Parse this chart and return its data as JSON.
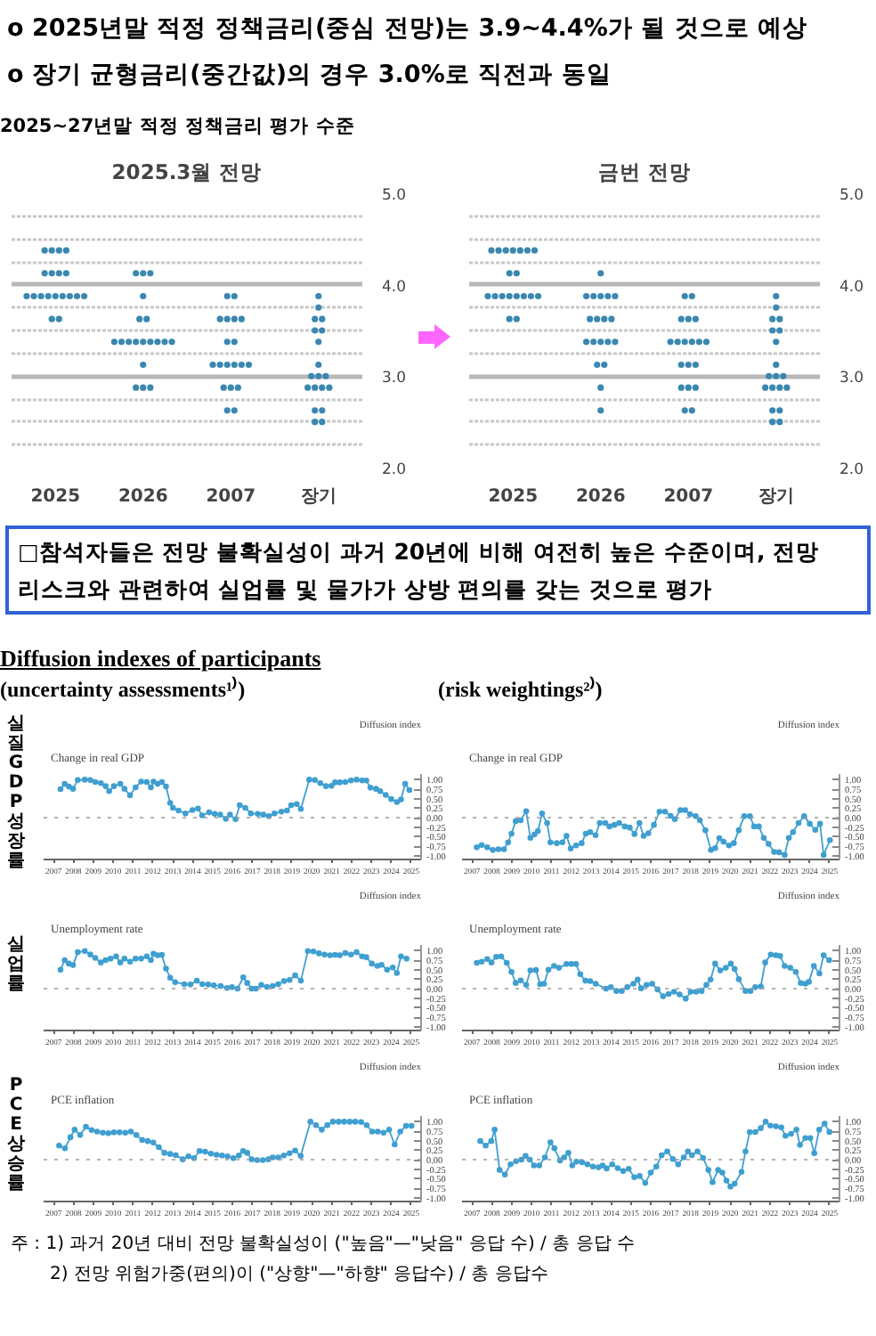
{
  "chart_data": [
    {
      "type": "other",
      "annotations": [
        "o 2025년말 적정 정책금리(중심 전망)는 3.9~4.4%가 될 것으로 예상",
        "o 장기 균형금리(중간값)의 경우 3.0%로 직전과 동일",
        "2025~27년말 적정 정책금리 평가 수준"
      ]
    },
    {
      "type": "scatter",
      "title": "2025.3월 전망",
      "categories": [
        "2025",
        "2026",
        "2007",
        "장기"
      ],
      "grid": "y",
      "marker": "circle",
      "ylim": [
        2,
        5
      ],
      "yticks": [
        {
          "value": 2,
          "label": "2.0"
        },
        {
          "value": 2.25,
          "label": null
        },
        {
          "value": 2.5,
          "label": null
        },
        {
          "value": 2.75,
          "label": null
        },
        {
          "value": 3,
          "label": "3.0"
        },
        {
          "value": 3.25,
          "label": null
        },
        {
          "value": 3.5,
          "label": null
        },
        {
          "value": 3.75,
          "label": null
        },
        {
          "value": 4,
          "label": "4.0"
        },
        {
          "value": 4.25,
          "label": null
        },
        {
          "value": 4.5,
          "label": null
        },
        {
          "value": 4.75,
          "label": null
        },
        {
          "value": 5,
          "label": "5.0"
        }
      ],
      "series": [
        {
          "color": "#3a87b0",
          "values": [
            4.375,
            4.125,
            3.875,
            3.875
          ]
        },
        {
          "color": "#3a87b0",
          "values": [
            4.375,
            4.125,
            3.875,
            3.75
          ]
        },
        {
          "color": "#3a87b0",
          "values": [
            4.375,
            4.125,
            3.625,
            3.625
          ]
        },
        {
          "color": "#3a87b0",
          "values": [
            4.375,
            3.875,
            3.625,
            3.625
          ]
        },
        {
          "color": "#3a87b0",
          "values": [
            4.125,
            3.625,
            3.625,
            3.5
          ]
        },
        {
          "color": "#3a87b0",
          "values": [
            4.125,
            3.625,
            3.625,
            3.5
          ]
        },
        {
          "color": "#3a87b0",
          "values": [
            4.125,
            3.375,
            3.375,
            3.375
          ]
        },
        {
          "color": "#3a87b0",
          "values": [
            4.125,
            3.375,
            3.375,
            3.125
          ]
        },
        {
          "color": "#3a87b0",
          "values": [
            3.875,
            3.375,
            3.125,
            3
          ]
        },
        {
          "color": "#3a87b0",
          "values": [
            3.875,
            3.375,
            3.125,
            3
          ]
        },
        {
          "color": "#3a87b0",
          "values": [
            3.875,
            3.375,
            3.125,
            3
          ]
        },
        {
          "color": "#3a87b0",
          "values": [
            3.875,
            3.375,
            3.125,
            2.875
          ]
        },
        {
          "color": "#3a87b0",
          "values": [
            3.875,
            3.375,
            3.125,
            2.875
          ]
        },
        {
          "color": "#3a87b0",
          "values": [
            3.875,
            3.375,
            3.125,
            2.875
          ]
        },
        {
          "color": "#3a87b0",
          "values": [
            3.875,
            3.375,
            2.875,
            2.875
          ]
        },
        {
          "color": "#3a87b0",
          "values": [
            3.875,
            3.125,
            2.875,
            2.625
          ]
        },
        {
          "color": "#3a87b0",
          "values": [
            3.875,
            2.875,
            2.875,
            2.625
          ]
        },
        {
          "color": "#3a87b0",
          "values": [
            3.625,
            2.875,
            2.625,
            2.5
          ]
        },
        {
          "color": "#3a87b0",
          "values": [
            3.625,
            2.875,
            2.625,
            2.5
          ]
        }
      ]
    },
    {
      "type": "scatter",
      "title": "금번 전망",
      "categories": [
        "2025",
        "2026",
        "2007",
        "장기"
      ],
      "grid": "y",
      "marker": "circle",
      "ylim": [
        2,
        5
      ],
      "yticks": [
        {
          "value": 2,
          "label": "2.0"
        },
        {
          "value": 2.25,
          "label": null
        },
        {
          "value": 2.5,
          "label": null
        },
        {
          "value": 2.75,
          "label": null
        },
        {
          "value": 3,
          "label": "3.0"
        },
        {
          "value": 3.25,
          "label": null
        },
        {
          "value": 3.5,
          "label": null
        },
        {
          "value": 3.75,
          "label": null
        },
        {
          "value": 4,
          "label": "4.0"
        },
        {
          "value": 4.25,
          "label": null
        },
        {
          "value": 4.5,
          "label": null
        },
        {
          "value": 4.75,
          "label": null
        },
        {
          "value": 5,
          "label": "5.0"
        }
      ],
      "series": [
        {
          "color": "#3a87b0",
          "values": [
            4.375,
            4.125,
            3.875,
            3.875
          ]
        },
        {
          "color": "#3a87b0",
          "values": [
            4.375,
            3.875,
            3.875,
            3.75
          ]
        },
        {
          "color": "#3a87b0",
          "values": [
            4.375,
            3.875,
            3.625,
            3.625
          ]
        },
        {
          "color": "#3a87b0",
          "values": [
            4.375,
            3.875,
            3.625,
            3.625
          ]
        },
        {
          "color": "#3a87b0",
          "values": [
            4.375,
            3.875,
            3.625,
            3.5
          ]
        },
        {
          "color": "#3a87b0",
          "values": [
            4.375,
            3.875,
            3.375,
            3.5
          ]
        },
        {
          "color": "#3a87b0",
          "values": [
            4.375,
            3.625,
            3.375,
            3.375
          ]
        },
        {
          "color": "#3a87b0",
          "values": [
            4.125,
            3.625,
            3.375,
            3.125
          ]
        },
        {
          "color": "#3a87b0",
          "values": [
            4.125,
            3.625,
            3.375,
            3
          ]
        },
        {
          "color": "#3a87b0",
          "values": [
            3.875,
            3.625,
            3.375,
            3
          ]
        },
        {
          "color": "#3a87b0",
          "values": [
            3.875,
            3.375,
            3.375,
            3
          ]
        },
        {
          "color": "#3a87b0",
          "values": [
            3.875,
            3.375,
            3.125,
            2.875
          ]
        },
        {
          "color": "#3a87b0",
          "values": [
            3.875,
            3.375,
            3.125,
            2.875
          ]
        },
        {
          "color": "#3a87b0",
          "values": [
            3.875,
            3.375,
            3.125,
            2.875
          ]
        },
        {
          "color": "#3a87b0",
          "values": [
            3.875,
            3.375,
            2.875,
            2.875
          ]
        },
        {
          "color": "#3a87b0",
          "values": [
            3.875,
            3.125,
            2.875,
            2.625
          ]
        },
        {
          "color": "#3a87b0",
          "values": [
            3.875,
            3.125,
            2.875,
            2.625
          ]
        },
        {
          "color": "#3a87b0",
          "values": [
            3.625,
            2.875,
            2.625,
            2.5
          ]
        },
        {
          "color": "#3a87b0",
          "values": [
            3.625,
            2.625,
            2.625,
            2.5
          ]
        }
      ]
    },
    {
      "type": "other",
      "annotations": [
        "□참석자들은 전망 불확실성이 과거 20년에 비해 여전히 높은 수준이며, 전망 리스크와 관련하여 실업률 및 물가가 상방 편의를 갖는 것으로 평가",
        "Diffusion indexes of participants",
        "(uncertainty assessments¹⁾)",
        "(risk weightings²⁾)"
      ]
    },
    {
      "type": "line",
      "title": "Change in real GDP",
      "ylabel": "Diffusion index",
      "annotations": [
        "실질GDP 성장률"
      ],
      "marker": "circle",
      "line_style": "solid",
      "xlim": [
        2007,
        2026
      ],
      "ylim": [
        -1.1,
        1.15
      ],
      "xticks": [
        {
          "value": 2007.5,
          "label": "2007"
        },
        {
          "value": 2008.5,
          "label": "2008"
        },
        {
          "value": 2009.5,
          "label": "2009"
        },
        {
          "value": 2010.5,
          "label": "2010"
        },
        {
          "value": 2011.5,
          "label": "2011"
        },
        {
          "value": 2012.5,
          "label": "2012"
        },
        {
          "value": 2013.5,
          "label": "2013"
        },
        {
          "value": 2014.5,
          "label": "2014"
        },
        {
          "value": 2015.5,
          "label": "2015"
        },
        {
          "value": 2016.5,
          "label": "2016"
        },
        {
          "value": 2017.5,
          "label": "2017"
        },
        {
          "value": 2018.5,
          "label": "2018"
        },
        {
          "value": 2019.5,
          "label": "2019"
        },
        {
          "value": 2020.5,
          "label": "2020"
        },
        {
          "value": 2021.5,
          "label": "2021"
        },
        {
          "value": 2022.5,
          "label": "2022"
        },
        {
          "value": 2023.5,
          "label": "2023"
        },
        {
          "value": 2024.5,
          "label": "2024"
        },
        {
          "value": 2025.5,
          "label": "2025"
        }
      ],
      "yticks": [
        {
          "value": 1,
          "label": "1.00"
        },
        {
          "value": 0.75,
          "label": "0.75"
        },
        {
          "value": 0.5,
          "label": "0.50"
        },
        {
          "value": 0.25,
          "label": "0.25"
        },
        {
          "value": 0,
          "label": "0.00"
        },
        {
          "value": -0.25,
          "label": "-0.25"
        },
        {
          "value": -0.5,
          "label": "-0.50"
        },
        {
          "value": -0.75,
          "label": "-0.75"
        },
        {
          "value": -1,
          "label": "-1.00"
        }
      ],
      "ref_lines": [
        {
          "axis": "y",
          "value": 0,
          "color": "#9a9a9a",
          "line_style": "dotted"
        }
      ],
      "x": [
        2007.85,
        2008.06,
        2008.27,
        2008.48,
        2008.72,
        2009.07,
        2009.35,
        2009.6,
        2009.88,
        2010.12,
        2010.3,
        2010.54,
        2010.86,
        2011.07,
        2011.35,
        2011.63,
        2011.91,
        2012.19,
        2012.4,
        2012.53,
        2012.74,
        2012.95,
        2013.16,
        2013.37,
        2013.51,
        2013.79,
        2014.14,
        2014.49,
        2014.77,
        2014.98,
        2015.33,
        2015.61,
        2015.89,
        2016.17,
        2016.38,
        2016.66,
        2016.87,
        2017.15,
        2017.43,
        2017.78,
        2018.06,
        2018.34,
        2018.62,
        2018.97,
        2019.25,
        2019.46,
        2019.74,
        2019.95,
        2020.37,
        2020.65,
        2020.93,
        2021.21,
        2021.49,
        2021.67,
        2021.91,
        2022.19,
        2022.47,
        2022.75,
        2023.03,
        2023.24,
        2023.45,
        2023.73,
        2023.94,
        2024.22,
        2024.5,
        2024.78,
        2024.99,
        2025.2,
        2025.41
      ],
      "series": [
        {
          "color": "#3f9fd0",
          "values": [
            0.75,
            0.89,
            0.82,
            0.76,
            0.99,
            1.0,
            0.99,
            0.94,
            0.91,
            0.83,
            0.7,
            0.83,
            0.89,
            0.76,
            0.59,
            0.8,
            0.95,
            0.94,
            0.8,
            0.95,
            0.89,
            0.94,
            0.82,
            0.39,
            0.26,
            0.19,
            0.11,
            0.2,
            0.24,
            0.06,
            0.14,
            0.1,
            0.08,
            -0.03,
            0.08,
            -0.04,
            0.33,
            0.26,
            0.11,
            0.1,
            0.08,
            0.04,
            0.11,
            0.16,
            0.19,
            0.33,
            0.36,
            0.23,
            1.0,
            0.99,
            0.91,
            0.83,
            0.84,
            0.93,
            0.93,
            0.94,
            0.98,
            1.0,
            0.98,
            0.98,
            0.79,
            0.76,
            0.7,
            0.6,
            0.49,
            0.41,
            0.48,
            0.89,
            0.73
          ]
        }
      ]
    },
    {
      "type": "line",
      "title": "Change in real GDP",
      "ylabel": "Diffusion index",
      "marker": "circle",
      "line_style": "solid",
      "xlim": [
        2007,
        2026
      ],
      "ylim": [
        -1.1,
        1.15
      ],
      "xticks": [
        {
          "value": 2007.5,
          "label": "2007"
        },
        {
          "value": 2008.5,
          "label": "2008"
        },
        {
          "value": 2009.5,
          "label": "2009"
        },
        {
          "value": 2010.5,
          "label": "2010"
        },
        {
          "value": 2011.5,
          "label": "2011"
        },
        {
          "value": 2012.5,
          "label": "2012"
        },
        {
          "value": 2013.5,
          "label": "2013"
        },
        {
          "value": 2014.5,
          "label": "2014"
        },
        {
          "value": 2015.5,
          "label": "2015"
        },
        {
          "value": 2016.5,
          "label": "2016"
        },
        {
          "value": 2017.5,
          "label": "2017"
        },
        {
          "value": 2018.5,
          "label": "2018"
        },
        {
          "value": 2019.5,
          "label": "2019"
        },
        {
          "value": 2020.5,
          "label": "2020"
        },
        {
          "value": 2021.5,
          "label": "2021"
        },
        {
          "value": 2022.5,
          "label": "2022"
        },
        {
          "value": 2023.5,
          "label": "2023"
        },
        {
          "value": 2024.5,
          "label": "2024"
        },
        {
          "value": 2025.5,
          "label": "2025"
        }
      ],
      "yticks": [
        {
          "value": 1,
          "label": "1.00"
        },
        {
          "value": 0.75,
          "label": "0.75"
        },
        {
          "value": 0.5,
          "label": "0.50"
        },
        {
          "value": 0.25,
          "label": "0.25"
        },
        {
          "value": 0,
          "label": "0.00"
        },
        {
          "value": -0.25,
          "label": "-0.25"
        },
        {
          "value": -0.5,
          "label": "-0.50"
        },
        {
          "value": -0.75,
          "label": "-0.75"
        },
        {
          "value": -1,
          "label": "-1.00"
        }
      ],
      "ref_lines": [
        {
          "axis": "y",
          "value": 0,
          "color": "#9a9a9a",
          "line_style": "dotted"
        }
      ],
      "x": [
        2007.74,
        2007.99,
        2008.27,
        2008.55,
        2008.83,
        2009.11,
        2009.32,
        2009.49,
        2009.7,
        2009.95,
        2010.23,
        2010.44,
        2010.65,
        2010.82,
        2011.03,
        2011.28,
        2011.45,
        2011.77,
        2012.05,
        2012.26,
        2012.47,
        2012.74,
        2013.02,
        2013.23,
        2013.45,
        2013.72,
        2013.93,
        2014.21,
        2014.42,
        2014.67,
        2014.91,
        2015.19,
        2015.44,
        2015.68,
        2015.93,
        2016.14,
        2016.38,
        2016.66,
        2016.94,
        2017.22,
        2017.5,
        2017.71,
        2017.99,
        2018.23,
        2018.48,
        2018.76,
        2018.97,
        2019.25,
        2019.53,
        2019.74,
        2019.95,
        2020.16,
        2020.44,
        2020.68,
        2020.93,
        2021.21,
        2021.49,
        2021.7,
        2021.94,
        2022.19,
        2022.43,
        2022.71,
        2022.96,
        2023.24,
        2023.45,
        2023.66,
        2023.94,
        2024.22,
        2024.5,
        2024.78,
        2025.02,
        2025.2,
        2025.52
      ],
      "series": [
        {
          "color": "#3f9fd0",
          "values": [
            -0.78,
            -0.72,
            -0.78,
            -0.85,
            -0.83,
            -0.83,
            -0.65,
            -0.42,
            -0.09,
            -0.07,
            0.17,
            -0.53,
            -0.44,
            -0.35,
            0.11,
            -0.14,
            -0.65,
            -0.67,
            -0.65,
            -0.48,
            -0.81,
            -0.73,
            -0.67,
            -0.42,
            -0.38,
            -0.46,
            -0.14,
            -0.14,
            -0.23,
            -0.19,
            -0.14,
            -0.23,
            -0.26,
            -0.43,
            -0.14,
            -0.48,
            -0.41,
            -0.19,
            0.16,
            0.16,
            0.05,
            -0.04,
            0.2,
            0.2,
            0.09,
            0.04,
            -0.07,
            -0.33,
            -0.85,
            -0.8,
            -0.54,
            -0.63,
            -0.73,
            -0.67,
            -0.33,
            0.04,
            0.04,
            -0.23,
            -0.23,
            -0.53,
            -0.69,
            -0.9,
            -0.91,
            -0.98,
            -0.53,
            -0.38,
            -0.14,
            0.04,
            -0.16,
            -0.32,
            -0.16,
            -0.98,
            -0.59
          ]
        }
      ]
    },
    {
      "type": "line",
      "title": "Unemployment rate",
      "ylabel": "Diffusion index",
      "annotations": [
        "실업률"
      ],
      "marker": "circle",
      "line_style": "solid",
      "xlim": [
        2007,
        2026
      ],
      "ylim": [
        -1.1,
        1.15
      ],
      "xticks": [
        {
          "value": 2007.5,
          "label": "2007"
        },
        {
          "value": 2008.5,
          "label": "2008"
        },
        {
          "value": 2009.5,
          "label": "2009"
        },
        {
          "value": 2010.5,
          "label": "2010"
        },
        {
          "value": 2011.5,
          "label": "2011"
        },
        {
          "value": 2012.5,
          "label": "2012"
        },
        {
          "value": 2013.5,
          "label": "2013"
        },
        {
          "value": 2014.5,
          "label": "2014"
        },
        {
          "value": 2015.5,
          "label": "2015"
        },
        {
          "value": 2016.5,
          "label": "2016"
        },
        {
          "value": 2017.5,
          "label": "2017"
        },
        {
          "value": 2018.5,
          "label": "2018"
        },
        {
          "value": 2019.5,
          "label": "2019"
        },
        {
          "value": 2020.5,
          "label": "2020"
        },
        {
          "value": 2021.5,
          "label": "2021"
        },
        {
          "value": 2022.5,
          "label": "2022"
        },
        {
          "value": 2023.5,
          "label": "2023"
        },
        {
          "value": 2024.5,
          "label": "2024"
        },
        {
          "value": 2025.5,
          "label": "2025"
        }
      ],
      "yticks": [
        {
          "value": 1,
          "label": "1.00"
        },
        {
          "value": 0.75,
          "label": "0.75"
        },
        {
          "value": 0.5,
          "label": "0.50"
        },
        {
          "value": 0.25,
          "label": "0.25"
        },
        {
          "value": 0,
          "label": "0.00"
        },
        {
          "value": -0.25,
          "label": "-0.25"
        },
        {
          "value": -0.5,
          "label": "-0.50"
        },
        {
          "value": -0.75,
          "label": "-0.75"
        },
        {
          "value": -1,
          "label": "-1.00"
        }
      ],
      "ref_lines": [
        {
          "axis": "y",
          "value": 0,
          "color": "#9a9a9a",
          "line_style": "dotted"
        }
      ],
      "x": [
        2007.85,
        2008.06,
        2008.27,
        2008.48,
        2008.72,
        2009.07,
        2009.35,
        2009.6,
        2009.88,
        2010.12,
        2010.37,
        2010.65,
        2010.86,
        2011.07,
        2011.35,
        2011.63,
        2011.91,
        2012.19,
        2012.4,
        2012.53,
        2012.74,
        2012.95,
        2013.16,
        2013.37,
        2013.62,
        2014.08,
        2014.39,
        2014.71,
        2014.99,
        2015.28,
        2015.56,
        2015.91,
        2016.23,
        2016.48,
        2016.76,
        2017.05,
        2017.25,
        2017.47,
        2017.68,
        2017.96,
        2018.24,
        2018.53,
        2018.81,
        2019.1,
        2019.38,
        2019.66,
        2019.95,
        2020.3,
        2020.58,
        2020.86,
        2021.14,
        2021.42,
        2021.67,
        2021.91,
        2022.19,
        2022.47,
        2022.75,
        2023.03,
        2023.24,
        2023.52,
        2023.8,
        2024.01,
        2024.29,
        2024.57,
        2024.78,
        2024.99,
        2025.27
      ],
      "series": [
        {
          "color": "#3f9fd0",
          "values": [
            0.5,
            0.75,
            0.66,
            0.62,
            0.96,
            0.99,
            0.9,
            0.81,
            0.69,
            0.75,
            0.79,
            0.85,
            0.69,
            0.79,
            0.71,
            0.79,
            0.79,
            0.85,
            0.75,
            0.92,
            0.88,
            0.89,
            0.53,
            0.29,
            0.17,
            0.12,
            0.11,
            0.21,
            0.12,
            0.11,
            0.09,
            0.07,
            0.02,
            0.04,
            0.0,
            0.3,
            0.15,
            0.0,
            0.0,
            0.1,
            0.05,
            0.07,
            0.12,
            0.2,
            0.23,
            0.35,
            0.21,
            0.99,
            0.98,
            0.93,
            0.9,
            0.88,
            0.89,
            0.88,
            0.94,
            0.9,
            0.96,
            0.85,
            0.83,
            0.66,
            0.6,
            0.63,
            0.5,
            0.56,
            0.41,
            0.85,
            0.79
          ]
        }
      ]
    },
    {
      "type": "line",
      "title": "Unemployment rate",
      "ylabel": "Diffusion index",
      "marker": "circle",
      "line_style": "solid",
      "xlim": [
        2007,
        2026
      ],
      "ylim": [
        -1.1,
        1.15
      ],
      "xticks": [
        {
          "value": 2007.5,
          "label": "2007"
        },
        {
          "value": 2008.5,
          "label": "2008"
        },
        {
          "value": 2009.5,
          "label": "2009"
        },
        {
          "value": 2010.5,
          "label": "2010"
        },
        {
          "value": 2011.5,
          "label": "2011"
        },
        {
          "value": 2012.5,
          "label": "2012"
        },
        {
          "value": 2013.5,
          "label": "2013"
        },
        {
          "value": 2014.5,
          "label": "2014"
        },
        {
          "value": 2015.5,
          "label": "2015"
        },
        {
          "value": 2016.5,
          "label": "2016"
        },
        {
          "value": 2017.5,
          "label": "2017"
        },
        {
          "value": 2018.5,
          "label": "2018"
        },
        {
          "value": 2019.5,
          "label": "2019"
        },
        {
          "value": 2020.5,
          "label": "2020"
        },
        {
          "value": 2021.5,
          "label": "2021"
        },
        {
          "value": 2022.5,
          "label": "2022"
        },
        {
          "value": 2023.5,
          "label": "2023"
        },
        {
          "value": 2024.5,
          "label": "2024"
        },
        {
          "value": 2025.5,
          "label": "2025"
        }
      ],
      "yticks": [
        {
          "value": 1,
          "label": "1.00"
        },
        {
          "value": 0.75,
          "label": "0.75"
        },
        {
          "value": 0.5,
          "label": "0.50"
        },
        {
          "value": 0.25,
          "label": "0.25"
        },
        {
          "value": 0,
          "label": "0.00"
        },
        {
          "value": -0.25,
          "label": "-0.25"
        },
        {
          "value": -0.5,
          "label": "-0.50"
        },
        {
          "value": -0.75,
          "label": "-0.75"
        },
        {
          "value": -1,
          "label": "-1.00"
        }
      ],
      "ref_lines": [
        {
          "axis": "y",
          "value": 0,
          "color": "#9a9a9a",
          "line_style": "dotted"
        }
      ],
      "x": [
        2007.74,
        2007.99,
        2008.27,
        2008.48,
        2008.72,
        2008.97,
        2009.25,
        2009.49,
        2009.7,
        2009.95,
        2010.23,
        2010.44,
        2010.72,
        2010.93,
        2011.13,
        2011.35,
        2011.63,
        2011.88,
        2012.26,
        2012.51,
        2012.74,
        2012.95,
        2013.21,
        2013.45,
        2013.73,
        2014.25,
        2014.49,
        2014.77,
        2015.04,
        2015.32,
        2015.63,
        2015.84,
        2016.01,
        2016.29,
        2016.57,
        2016.84,
        2017.12,
        2017.4,
        2017.67,
        2017.95,
        2018.26,
        2018.51,
        2018.78,
        2019.06,
        2019.3,
        2019.51,
        2019.74,
        2020.0,
        2020.28,
        2020.53,
        2020.72,
        2020.93,
        2021.27,
        2021.52,
        2021.76,
        2022.04,
        2022.26,
        2022.54,
        2022.8,
        2023.01,
        2023.24,
        2023.52,
        2023.8,
        2024.05,
        2024.28,
        2024.46,
        2024.71,
        2024.99,
        2025.2,
        2025.48
      ],
      "series": [
        {
          "color": "#3f9fd0",
          "values": [
            0.68,
            0.71,
            0.78,
            0.69,
            0.84,
            0.85,
            0.68,
            0.44,
            0.15,
            0.22,
            0.1,
            0.48,
            0.49,
            0.12,
            0.13,
            0.5,
            0.6,
            0.55,
            0.65,
            0.65,
            0.65,
            0.38,
            0.21,
            0.2,
            0.13,
            0.0,
            0.04,
            -0.06,
            -0.06,
            0.04,
            0.13,
            0.24,
            0.01,
            0.1,
            0.13,
            -0.02,
            -0.2,
            -0.14,
            -0.08,
            -0.15,
            -0.26,
            -0.08,
            -0.08,
            -0.06,
            0.1,
            0.24,
            0.66,
            0.48,
            0.55,
            0.66,
            0.52,
            0.25,
            -0.06,
            -0.06,
            0.04,
            0.06,
            0.69,
            0.9,
            0.88,
            0.86,
            0.6,
            0.55,
            0.44,
            0.15,
            0.13,
            0.18,
            0.6,
            0.4,
            0.88,
            0.75
          ]
        }
      ]
    },
    {
      "type": "line",
      "title": "PCE inflation",
      "ylabel": "Diffusion index",
      "annotations": [
        "PCE 상승률"
      ],
      "marker": "circle",
      "line_style": "solid",
      "xlim": [
        2007,
        2026
      ],
      "ylim": [
        -1.1,
        1.15
      ],
      "xticks": [
        {
          "value": 2007.5,
          "label": "2007"
        },
        {
          "value": 2008.5,
          "label": "2008"
        },
        {
          "value": 2009.5,
          "label": "2009"
        },
        {
          "value": 2010.5,
          "label": "2010"
        },
        {
          "value": 2011.5,
          "label": "2011"
        },
        {
          "value": 2012.5,
          "label": "2012"
        },
        {
          "value": 2013.5,
          "label": "2013"
        },
        {
          "value": 2014.5,
          "label": "2014"
        },
        {
          "value": 2015.5,
          "label": "2015"
        },
        {
          "value": 2016.5,
          "label": "2016"
        },
        {
          "value": 2017.5,
          "label": "2017"
        },
        {
          "value": 2018.5,
          "label": "2018"
        },
        {
          "value": 2019.5,
          "label": "2019"
        },
        {
          "value": 2020.5,
          "label": "2020"
        },
        {
          "value": 2021.5,
          "label": "2021"
        },
        {
          "value": 2022.5,
          "label": "2022"
        },
        {
          "value": 2023.5,
          "label": "2023"
        },
        {
          "value": 2024.5,
          "label": "2024"
        },
        {
          "value": 2025.5,
          "label": "2025"
        }
      ],
      "yticks": [
        {
          "value": 1,
          "label": "1.00"
        },
        {
          "value": 0.75,
          "label": "0.75"
        },
        {
          "value": 0.5,
          "label": "0.50"
        },
        {
          "value": 0.25,
          "label": "0.25"
        },
        {
          "value": 0,
          "label": "0.00"
        },
        {
          "value": -0.25,
          "label": "-0.25"
        },
        {
          "value": -0.5,
          "label": "-0.50"
        },
        {
          "value": -0.75,
          "label": "-0.75"
        },
        {
          "value": -1,
          "label": "-1.00"
        }
      ],
      "ref_lines": [
        {
          "axis": "y",
          "value": 0,
          "color": "#9a9a9a",
          "line_style": "dotted"
        }
      ],
      "x": [
        2007.78,
        2008.07,
        2008.35,
        2008.56,
        2008.84,
        2009.13,
        2009.41,
        2009.69,
        2009.98,
        2010.26,
        2010.54,
        2010.82,
        2011.11,
        2011.39,
        2011.67,
        2011.96,
        2012.24,
        2012.52,
        2012.8,
        2013.08,
        2013.37,
        2013.65,
        2014.0,
        2014.29,
        2014.57,
        2014.85,
        2015.13,
        2015.42,
        2015.7,
        2015.98,
        2016.26,
        2016.55,
        2016.83,
        2017.04,
        2017.25,
        2017.47,
        2017.75,
        2018.03,
        2018.31,
        2018.53,
        2018.81,
        2019.09,
        2019.38,
        2019.66,
        2019.94,
        2020.43,
        2020.71,
        2021.0,
        2021.28,
        2021.56,
        2021.85,
        2022.13,
        2022.41,
        2022.69,
        2022.98,
        2023.26,
        2023.54,
        2023.82,
        2024.11,
        2024.39,
        2024.67,
        2024.95,
        2025.24,
        2025.52
      ],
      "series": [
        {
          "color": "#3f9fd0",
          "values": [
            0.37,
            0.3,
            0.59,
            0.79,
            0.65,
            0.87,
            0.78,
            0.74,
            0.71,
            0.7,
            0.72,
            0.72,
            0.71,
            0.74,
            0.65,
            0.52,
            0.49,
            0.45,
            0.33,
            0.18,
            0.15,
            0.12,
            0.01,
            0.09,
            0.04,
            0.23,
            0.21,
            0.16,
            0.13,
            0.11,
            0.09,
            0.04,
            0.11,
            0.23,
            0.18,
            0.01,
            -0.01,
            -0.01,
            0.01,
            0.06,
            0.06,
            0.11,
            0.17,
            0.24,
            0.1,
            1.0,
            0.91,
            0.79,
            0.91,
            1.0,
            1.0,
            1.0,
            1.0,
            1.0,
            0.99,
            0.91,
            0.74,
            0.74,
            0.71,
            0.79,
            0.4,
            0.74,
            0.89,
            0.89
          ]
        }
      ]
    },
    {
      "type": "line",
      "title": "PCE inflation",
      "ylabel": "Diffusion index",
      "marker": "circle",
      "line_style": "solid",
      "xlim": [
        2007,
        2026
      ],
      "ylim": [
        -1.1,
        1.15
      ],
      "xticks": [
        {
          "value": 2007.5,
          "label": "2007"
        },
        {
          "value": 2008.5,
          "label": "2008"
        },
        {
          "value": 2009.5,
          "label": "2009"
        },
        {
          "value": 2010.5,
          "label": "2010"
        },
        {
          "value": 2011.5,
          "label": "2011"
        },
        {
          "value": 2012.5,
          "label": "2012"
        },
        {
          "value": 2013.5,
          "label": "2013"
        },
        {
          "value": 2014.5,
          "label": "2014"
        },
        {
          "value": 2015.5,
          "label": "2015"
        },
        {
          "value": 2016.5,
          "label": "2016"
        },
        {
          "value": 2017.5,
          "label": "2017"
        },
        {
          "value": 2018.5,
          "label": "2018"
        },
        {
          "value": 2019.5,
          "label": "2019"
        },
        {
          "value": 2020.5,
          "label": "2020"
        },
        {
          "value": 2021.5,
          "label": "2021"
        },
        {
          "value": 2022.5,
          "label": "2022"
        },
        {
          "value": 2023.5,
          "label": "2023"
        },
        {
          "value": 2024.5,
          "label": "2024"
        },
        {
          "value": 2025.5,
          "label": "2025"
        }
      ],
      "yticks": [
        {
          "value": 1,
          "label": "1.00"
        },
        {
          "value": 0.75,
          "label": "0.75"
        },
        {
          "value": 0.5,
          "label": "0.50"
        },
        {
          "value": 0.25,
          "label": "0.25"
        },
        {
          "value": 0,
          "label": "0.00"
        },
        {
          "value": -0.25,
          "label": "-0.25"
        },
        {
          "value": -0.5,
          "label": "-0.50"
        },
        {
          "value": -0.75,
          "label": "-0.75"
        },
        {
          "value": -1,
          "label": "-1.00"
        }
      ],
      "ref_lines": [
        {
          "axis": "y",
          "value": 0,
          "color": "#9a9a9a",
          "line_style": "dotted"
        }
      ],
      "x": [
        2007.92,
        2008.19,
        2008.47,
        2008.64,
        2008.89,
        2009.16,
        2009.44,
        2009.72,
        2009.99,
        2010.2,
        2010.41,
        2010.62,
        2010.89,
        2011.17,
        2011.45,
        2011.65,
        2011.93,
        2012.14,
        2012.35,
        2012.55,
        2012.76,
        2013.04,
        2013.31,
        2013.59,
        2013.87,
        2014.08,
        2014.28,
        2014.56,
        2014.84,
        2015.11,
        2015.39,
        2015.67,
        2015.94,
        2016.22,
        2016.5,
        2016.78,
        2017.05,
        2017.33,
        2017.61,
        2017.88,
        2018.16,
        2018.37,
        2018.57,
        2018.85,
        2019.13,
        2019.4,
        2019.61,
        2019.89,
        2020.1,
        2020.31,
        2020.51,
        2020.72,
        2021.07,
        2021.27,
        2021.48,
        2021.76,
        2022.04,
        2022.28,
        2022.52,
        2022.8,
        2023.07,
        2023.28,
        2023.56,
        2023.83,
        2024.01,
        2024.28,
        2024.53,
        2024.73,
        2024.98,
        2025.25,
        2025.49
      ],
      "series": [
        {
          "color": "#3f9fd0",
          "values": [
            0.49,
            0.37,
            0.49,
            0.79,
            -0.27,
            -0.39,
            -0.12,
            -0.04,
            0.0,
            0.1,
            0.0,
            -0.15,
            -0.15,
            0.06,
            0.46,
            0.3,
            -0.02,
            0.06,
            0.18,
            -0.15,
            -0.05,
            -0.07,
            -0.12,
            -0.18,
            -0.2,
            -0.15,
            -0.23,
            -0.12,
            -0.22,
            -0.3,
            -0.24,
            -0.46,
            -0.43,
            -0.61,
            -0.34,
            -0.18,
            0.12,
            0.22,
            0.02,
            -0.12,
            0.06,
            0.22,
            0.12,
            0.22,
            0.05,
            -0.27,
            -0.59,
            -0.27,
            -0.34,
            -0.55,
            -0.71,
            -0.63,
            -0.32,
            0.22,
            0.73,
            0.73,
            0.83,
            1.0,
            0.9,
            0.88,
            0.85,
            0.63,
            0.68,
            0.79,
            0.39,
            0.57,
            0.57,
            0.17,
            0.79,
            0.95,
            0.73
          ]
        }
      ]
    },
    {
      "type": "other",
      "annotations": [
        "주 : 1) 과거 20년 대비 전망 불확실성이 (\"높음\"—\"낮음\" 응답 수) / 총 응답 수",
        "2) 전망 위험가중(편의)이 (\"상향\"—\"하향\" 응답수) / 총 응답수"
      ]
    }
  ]
}
